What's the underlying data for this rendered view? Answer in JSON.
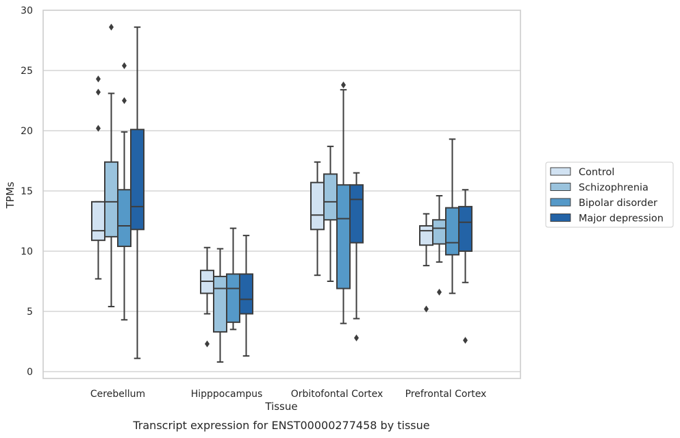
{
  "chart_data": {
    "type": "box",
    "caption": "Transcript expression for ENST00000277458 by tissue",
    "xlabel": "Tissue",
    "ylabel": "TPMs",
    "ylim": [
      -0.5,
      30
    ],
    "yticks": [
      0,
      5,
      10,
      15,
      20,
      25,
      30
    ],
    "grid": "horizontal",
    "legend_placement": "right",
    "categories": [
      "Cerebellum",
      "Hipppocampus",
      "Orbitofontal Cortex",
      "Prefrontal Cortex"
    ],
    "series": [
      {
        "name": "Control",
        "color": "#d1e2f2",
        "boxes": [
          {
            "whislo": 7.7,
            "q1": 10.9,
            "med": 11.7,
            "q3": 14.1,
            "whishi": 14.1,
            "fliers": [
              20.2,
              23.2,
              24.3
            ]
          },
          {
            "whislo": 4.8,
            "q1": 6.5,
            "med": 7.5,
            "q3": 8.4,
            "whishi": 10.3,
            "fliers": [
              2.3
            ]
          },
          {
            "whislo": 8.0,
            "q1": 11.8,
            "med": 13.0,
            "q3": 15.7,
            "whishi": 17.4,
            "fliers": []
          },
          {
            "whislo": 8.8,
            "q1": 10.5,
            "med": 11.7,
            "q3": 12.1,
            "whishi": 13.1,
            "fliers": [
              5.2
            ]
          }
        ]
      },
      {
        "name": "Schizophrenia",
        "color": "#9ac3dd",
        "boxes": [
          {
            "whislo": 5.4,
            "q1": 11.2,
            "med": 14.1,
            "q3": 17.4,
            "whishi": 23.1,
            "fliers": [
              28.6
            ]
          },
          {
            "whislo": 0.8,
            "q1": 3.3,
            "med": 6.9,
            "q3": 7.9,
            "whishi": 10.2,
            "fliers": []
          },
          {
            "whislo": 7.5,
            "q1": 12.6,
            "med": 14.1,
            "q3": 16.4,
            "whishi": 18.7,
            "fliers": []
          },
          {
            "whislo": 9.1,
            "q1": 10.6,
            "med": 11.9,
            "q3": 12.6,
            "whishi": 14.6,
            "fliers": [
              6.6
            ]
          }
        ]
      },
      {
        "name": "Bipolar disorder",
        "color": "#5599c8",
        "boxes": [
          {
            "whislo": 4.3,
            "q1": 10.4,
            "med": 12.1,
            "q3": 15.1,
            "whishi": 19.9,
            "fliers": [
              22.5,
              25.4
            ]
          },
          {
            "whislo": 3.5,
            "q1": 4.1,
            "med": 6.9,
            "q3": 8.1,
            "whishi": 11.9,
            "fliers": []
          },
          {
            "whislo": 4.0,
            "q1": 6.9,
            "med": 12.7,
            "q3": 15.5,
            "whishi": 23.4,
            "fliers": [
              23.8
            ]
          },
          {
            "whislo": 6.5,
            "q1": 9.7,
            "med": 10.7,
            "q3": 13.6,
            "whishi": 19.3,
            "fliers": []
          }
        ]
      },
      {
        "name": "Major depression",
        "color": "#2363a6",
        "boxes": [
          {
            "whislo": 1.1,
            "q1": 11.8,
            "med": 13.7,
            "q3": 20.1,
            "whishi": 28.6,
            "fliers": []
          },
          {
            "whislo": 1.3,
            "q1": 4.8,
            "med": 6.0,
            "q3": 8.1,
            "whishi": 11.3,
            "fliers": []
          },
          {
            "whislo": 4.4,
            "q1": 10.7,
            "med": 14.3,
            "q3": 15.5,
            "whishi": 16.5,
            "fliers": [
              2.8
            ]
          },
          {
            "whislo": 7.4,
            "q1": 10.0,
            "med": 12.4,
            "q3": 13.7,
            "whishi": 15.1,
            "fliers": [
              2.6
            ]
          }
        ]
      }
    ]
  },
  "colors": {
    "grid": "#cccccc",
    "frame": "#cccccc",
    "box_edge": "#3d3d3d",
    "text": "#262626"
  }
}
